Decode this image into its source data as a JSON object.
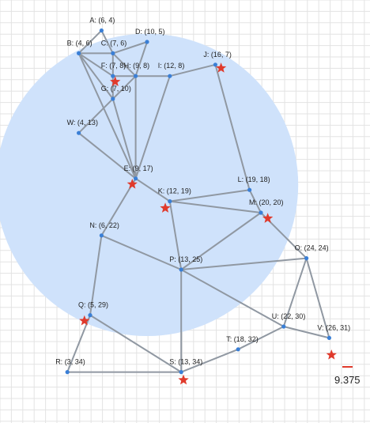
{
  "diagram": {
    "grid": true,
    "disk": {
      "center": [
        10,
        17
      ],
      "radius": 10.5,
      "color": "#cfe2fb"
    },
    "edge_color": "#9098a2",
    "vertex_color": "#3a7fd6",
    "star_color": "#e03a2c",
    "points": [
      {
        "id": "A",
        "label": "A: (6, 4)",
        "x": 6,
        "y": 4
      },
      {
        "id": "B",
        "label": "B: (4, 6)",
        "x": 4,
        "y": 6
      },
      {
        "id": "C",
        "label": "C: (7, 6)",
        "x": 7,
        "y": 6
      },
      {
        "id": "D",
        "label": "D: (10, 5)",
        "x": 10,
        "y": 5
      },
      {
        "id": "F",
        "label": "F: (7, 8)",
        "x": 7,
        "y": 8
      },
      {
        "id": "H",
        "label": "H: (9, 8)",
        "x": 9,
        "y": 8
      },
      {
        "id": "I",
        "label": "I: (12, 8)",
        "x": 12,
        "y": 8
      },
      {
        "id": "J",
        "label": "J: (16, 7)",
        "x": 16,
        "y": 7
      },
      {
        "id": "G",
        "label": "G: (7, 10)",
        "x": 7,
        "y": 10
      },
      {
        "id": "W",
        "label": "W: (4, 13)",
        "x": 4,
        "y": 13
      },
      {
        "id": "E",
        "label": "E: (9, 17)",
        "x": 9,
        "y": 17
      },
      {
        "id": "K",
        "label": "K: (12, 19)",
        "x": 12,
        "y": 19
      },
      {
        "id": "L",
        "label": "L: (19, 18)",
        "x": 19,
        "y": 18
      },
      {
        "id": "M",
        "label": "M: (20, 20)",
        "x": 20,
        "y": 20
      },
      {
        "id": "N",
        "label": "N: (6, 22)",
        "x": 6,
        "y": 22
      },
      {
        "id": "O",
        "label": "O: (24, 24)",
        "x": 24,
        "y": 24
      },
      {
        "id": "P",
        "label": "P: (13, 25)",
        "x": 13,
        "y": 25
      },
      {
        "id": "Q",
        "label": "Q: (5, 29)",
        "x": 5,
        "y": 29
      },
      {
        "id": "U",
        "label": "U: (22, 30)",
        "x": 22,
        "y": 30
      },
      {
        "id": "V",
        "label": "V: (26, 31)",
        "x": 26,
        "y": 31
      },
      {
        "id": "T",
        "label": "T: (18, 32)",
        "x": 18,
        "y": 32
      },
      {
        "id": "R",
        "label": "R: (3, 34)",
        "x": 3,
        "y": 34
      },
      {
        "id": "S",
        "label": "S: (13, 34)",
        "x": 13,
        "y": 34
      }
    ],
    "edges": [
      [
        "A",
        "B"
      ],
      [
        "A",
        "C"
      ],
      [
        "B",
        "C"
      ],
      [
        "C",
        "D"
      ],
      [
        "B",
        "F"
      ],
      [
        "C",
        "F"
      ],
      [
        "C",
        "H"
      ],
      [
        "D",
        "H"
      ],
      [
        "F",
        "H"
      ],
      [
        "H",
        "I"
      ],
      [
        "I",
        "J"
      ],
      [
        "B",
        "G"
      ],
      [
        "F",
        "G"
      ],
      [
        "G",
        "H"
      ],
      [
        "H",
        "E"
      ],
      [
        "G",
        "E"
      ],
      [
        "B",
        "E"
      ],
      [
        "I",
        "E"
      ],
      [
        "W",
        "G"
      ],
      [
        "W",
        "E"
      ],
      [
        "E",
        "N"
      ],
      [
        "E",
        "K"
      ],
      [
        "J",
        "L"
      ],
      [
        "K",
        "L"
      ],
      [
        "K",
        "M"
      ],
      [
        "L",
        "M"
      ],
      [
        "K",
        "P"
      ],
      [
        "M",
        "P"
      ],
      [
        "M",
        "O"
      ],
      [
        "N",
        "P"
      ],
      [
        "N",
        "Q"
      ],
      [
        "P",
        "O"
      ],
      [
        "P",
        "S"
      ],
      [
        "P",
        "U"
      ],
      [
        "O",
        "U"
      ],
      [
        "O",
        "V"
      ],
      [
        "U",
        "V"
      ],
      [
        "U",
        "T"
      ],
      [
        "T",
        "S"
      ],
      [
        "Q",
        "S"
      ],
      [
        "Q",
        "R"
      ],
      [
        "R",
        "S"
      ]
    ],
    "stars": [
      {
        "x": 7.2,
        "y": 8.5
      },
      {
        "x": 16.5,
        "y": 7.3
      },
      {
        "x": 8.7,
        "y": 17.5
      },
      {
        "x": 11.6,
        "y": 19.6
      },
      {
        "x": 20.6,
        "y": 20.5
      },
      {
        "x": 4.5,
        "y": 29.5
      },
      {
        "x": 13.2,
        "y": 34.7
      },
      {
        "x": 26.2,
        "y": 32.5
      }
    ],
    "scale": {
      "value": "9.375",
      "color": "#e03a2c"
    }
  }
}
